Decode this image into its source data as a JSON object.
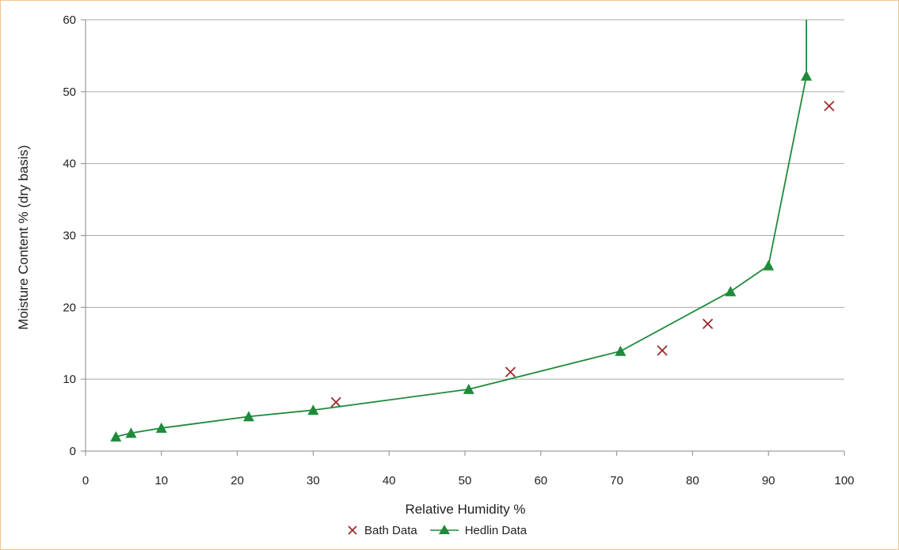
{
  "chart_data": {
    "type": "scatter",
    "title": "",
    "xlabel": "Relative Humidity %",
    "ylabel": "Moisture Content % (dry basis)",
    "xlim": [
      0,
      100
    ],
    "ylim": [
      0,
      60
    ],
    "x_ticks": [
      0,
      10,
      20,
      30,
      40,
      50,
      60,
      70,
      80,
      90,
      100
    ],
    "y_ticks": [
      0,
      10,
      20,
      30,
      40,
      50,
      60
    ],
    "grid": "horizontal",
    "legend_position": "bottom",
    "series": [
      {
        "name": "Bath Data",
        "marker": "x",
        "color": "#9b2c2c",
        "points": [
          {
            "x": 33,
            "y": 6.8
          },
          {
            "x": 56,
            "y": 11.0
          },
          {
            "x": 76,
            "y": 14.0
          },
          {
            "x": 82,
            "y": 17.7
          },
          {
            "x": 98,
            "y": 48.0
          }
        ]
      },
      {
        "name": "Hedlin Data",
        "marker": "triangle",
        "line": true,
        "color": "#1f8a3a",
        "points": [
          {
            "x": 4,
            "y": 2.0
          },
          {
            "x": 6,
            "y": 2.5
          },
          {
            "x": 10,
            "y": 3.2
          },
          {
            "x": 21.5,
            "y": 4.8
          },
          {
            "x": 30,
            "y": 5.7
          },
          {
            "x": 50.5,
            "y": 8.6
          },
          {
            "x": 70.5,
            "y": 13.9
          },
          {
            "x": 85,
            "y": 22.2
          },
          {
            "x": 90,
            "y": 25.8
          },
          {
            "x": 95,
            "y": 52.2
          }
        ],
        "line_extends_to": {
          "x": 95,
          "y": 60
        }
      }
    ]
  }
}
